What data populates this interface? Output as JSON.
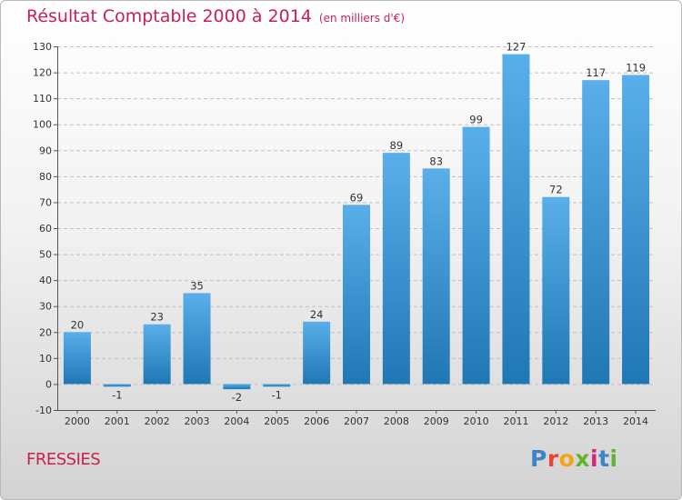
{
  "title": "Résultat Comptable 2000 à 2014",
  "subtitle": "(en milliers d'€)",
  "place_name": "FRESSIES",
  "logo": {
    "text": "Proxiti",
    "letter_colors": [
      "#3a86c8",
      "#e8462c",
      "#f2a413",
      "#63b32e",
      "#d6257d",
      "#3a86c8",
      "#63b32e"
    ]
  },
  "colors": {
    "title": "#c8204f",
    "bar_light": "#5aafea",
    "bar_dark": "#1f77b4",
    "grid": "#c0c0c0"
  },
  "chart_data": {
    "type": "bar",
    "categories": [
      "2000",
      "2001",
      "2002",
      "2003",
      "2004",
      "2005",
      "2006",
      "2007",
      "2008",
      "2009",
      "2010",
      "2011",
      "2012",
      "2013",
      "2014"
    ],
    "values": [
      20,
      -1,
      23,
      35,
      -2,
      -1,
      24,
      69,
      89,
      83,
      99,
      127,
      72,
      117,
      119
    ],
    "ylim": [
      -10,
      130
    ],
    "yticks": [
      -10,
      0,
      10,
      20,
      30,
      40,
      50,
      60,
      70,
      80,
      90,
      100,
      110,
      120,
      130
    ],
    "grid": "horizontal dashed",
    "xlabel": "",
    "ylabel": ""
  }
}
